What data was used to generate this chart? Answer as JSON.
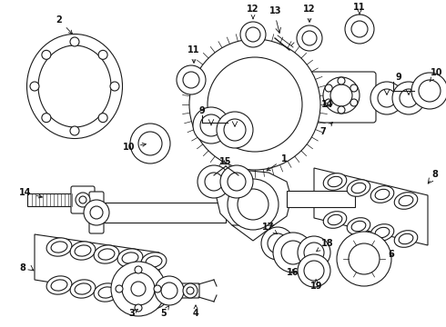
{
  "bg_color": "#ffffff",
  "lc": "#1a1a1a",
  "lw": 0.8
}
